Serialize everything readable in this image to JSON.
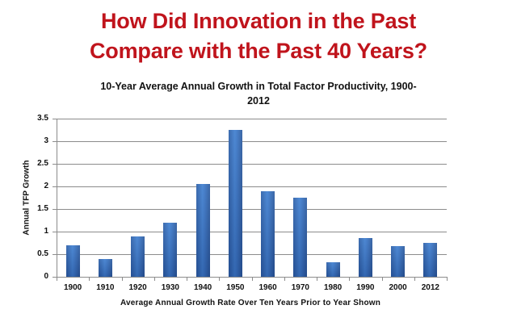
{
  "slide": {
    "title_line1": "How Did Innovation in the Past",
    "title_line2": "Compare with the Past 40 Years?",
    "title_color": "#c0141c"
  },
  "chart_data": {
    "type": "bar",
    "title": "10-Year Average Annual Growth in Total Factor Productivity, 1900-2012",
    "title_line1": "10-Year Average Annual Growth in Total Factor Productivity, 1900-",
    "title_line2": "2012",
    "xlabel": "Average Annual Growth Rate Over Ten Years Prior to Year Shown",
    "ylabel": "Annual TFP Growth",
    "categories": [
      "1900",
      "1910",
      "1920",
      "1930",
      "1940",
      "1950",
      "1960",
      "1970",
      "1980",
      "1990",
      "2000",
      "2012"
    ],
    "values": [
      0.7,
      0.4,
      0.9,
      1.2,
      2.05,
      3.25,
      1.9,
      1.75,
      0.33,
      0.85,
      0.68,
      0.75
    ],
    "ylim": [
      0,
      3.5
    ],
    "yticks": [
      "0",
      "0.5",
      "1",
      "1.5",
      "2",
      "2.5",
      "3",
      "3.5"
    ],
    "grid": true,
    "legend": null,
    "bar_color": "#3a72c0"
  }
}
